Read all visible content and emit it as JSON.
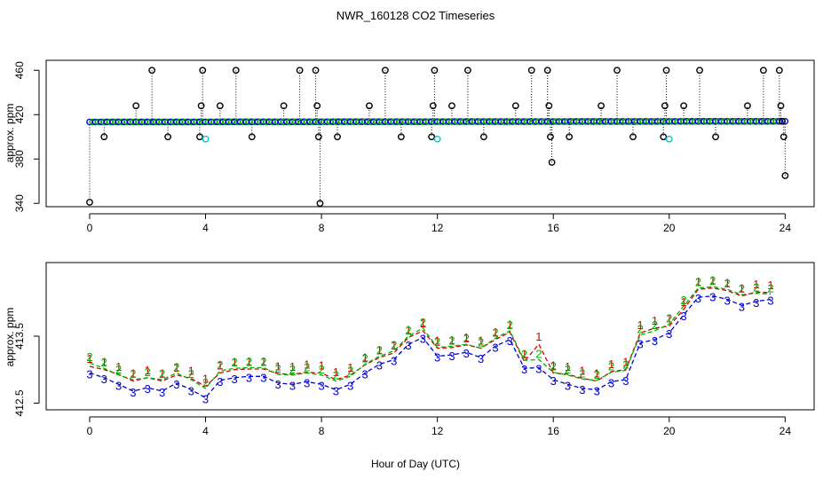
{
  "title": "NWR_160128  CO2 Timeseries",
  "xlabel": "Hour of Day (UTC)",
  "colors": {
    "line1": "#d40000",
    "line2": "#00b000",
    "line3": "#0000d0",
    "cyan": "#00c8d8",
    "black": "#000000"
  },
  "chart_data": [
    {
      "type": "scatter",
      "panel": "top",
      "ylabel": "approx. ppm",
      "xlim": [
        -1.5,
        25
      ],
      "ylim": [
        337,
        469
      ],
      "xticks": [
        "0",
        "4",
        "8",
        "12",
        "16",
        "20",
        "24"
      ],
      "yticks": [
        "340",
        "380",
        "420",
        "460"
      ],
      "baseline": {
        "x_start": 0,
        "x_end": 24,
        "y_start": 413.4,
        "y_end": 414.0,
        "step": 0.1,
        "marker": "circle",
        "colors": [
          "blue",
          "green"
        ]
      },
      "spikes": [
        {
          "x": 0.0,
          "y": 341
        },
        {
          "x": 0.5,
          "y": 400
        },
        {
          "x": 1.6,
          "y": 428
        },
        {
          "x": 2.15,
          "y": 460
        },
        {
          "x": 2.7,
          "y": 400
        },
        {
          "x": 3.8,
          "y": 400
        },
        {
          "x": 3.85,
          "y": 428
        },
        {
          "x": 3.9,
          "y": 460
        },
        {
          "x": 4.5,
          "y": 428
        },
        {
          "x": 5.05,
          "y": 460
        },
        {
          "x": 5.6,
          "y": 400
        },
        {
          "x": 6.7,
          "y": 428
        },
        {
          "x": 7.25,
          "y": 460
        },
        {
          "x": 7.8,
          "y": 460
        },
        {
          "x": 7.85,
          "y": 428
        },
        {
          "x": 7.9,
          "y": 400
        },
        {
          "x": 7.95,
          "y": 340
        },
        {
          "x": 8.55,
          "y": 400
        },
        {
          "x": 9.65,
          "y": 428
        },
        {
          "x": 10.2,
          "y": 460
        },
        {
          "x": 10.75,
          "y": 400
        },
        {
          "x": 11.8,
          "y": 400
        },
        {
          "x": 11.85,
          "y": 428
        },
        {
          "x": 11.9,
          "y": 460
        },
        {
          "x": 12.5,
          "y": 428
        },
        {
          "x": 13.05,
          "y": 460
        },
        {
          "x": 13.6,
          "y": 400
        },
        {
          "x": 14.7,
          "y": 428
        },
        {
          "x": 15.25,
          "y": 460
        },
        {
          "x": 15.8,
          "y": 460
        },
        {
          "x": 15.85,
          "y": 428
        },
        {
          "x": 15.9,
          "y": 400
        },
        {
          "x": 15.95,
          "y": 377
        },
        {
          "x": 16.55,
          "y": 400
        },
        {
          "x": 17.65,
          "y": 428
        },
        {
          "x": 18.2,
          "y": 460
        },
        {
          "x": 18.75,
          "y": 400
        },
        {
          "x": 19.8,
          "y": 400
        },
        {
          "x": 19.85,
          "y": 428
        },
        {
          "x": 19.9,
          "y": 460
        },
        {
          "x": 20.5,
          "y": 428
        },
        {
          "x": 21.05,
          "y": 460
        },
        {
          "x": 21.6,
          "y": 400
        },
        {
          "x": 22.7,
          "y": 428
        },
        {
          "x": 23.25,
          "y": 460
        },
        {
          "x": 23.8,
          "y": 460
        },
        {
          "x": 23.85,
          "y": 428
        },
        {
          "x": 23.9,
          "y": 414
        },
        {
          "x": 23.95,
          "y": 400
        },
        {
          "x": 24.0,
          "y": 365
        }
      ],
      "cyan_points": [
        {
          "x": 4.0,
          "y": 398
        },
        {
          "x": 12.0,
          "y": 398
        },
        {
          "x": 20.0,
          "y": 398
        }
      ]
    },
    {
      "type": "line",
      "panel": "bottom",
      "ylabel": "approx. ppm",
      "xlim": [
        -1.5,
        25
      ],
      "ylim": [
        412.4,
        414.6
      ],
      "xticks": [
        "0",
        "4",
        "8",
        "12",
        "16",
        "20",
        "24"
      ],
      "yticks": [
        "412.5",
        "413.5"
      ],
      "series": [
        {
          "name": "1",
          "color": "red",
          "points": [
            {
              "x": 0.0,
              "y": 413.05
            },
            {
              "x": 0.5,
              "y": 413.0
            },
            {
              "x": 1.0,
              "y": 412.93
            },
            {
              "x": 1.5,
              "y": 412.83
            },
            {
              "x": 2.0,
              "y": 412.88
            },
            {
              "x": 2.5,
              "y": 412.83
            },
            {
              "x": 3.0,
              "y": 412.92
            },
            {
              "x": 3.5,
              "y": 412.87
            },
            {
              "x": 4.0,
              "y": 412.75
            },
            {
              "x": 4.5,
              "y": 412.95
            },
            {
              "x": 5.0,
              "y": 413.0
            },
            {
              "x": 5.5,
              "y": 413.01
            },
            {
              "x": 6.0,
              "y": 413.01
            },
            {
              "x": 6.5,
              "y": 412.94
            },
            {
              "x": 7.0,
              "y": 412.93
            },
            {
              "x": 7.5,
              "y": 412.96
            },
            {
              "x": 8.0,
              "y": 412.95
            },
            {
              "x": 8.5,
              "y": 412.85
            },
            {
              "x": 9.0,
              "y": 412.92
            },
            {
              "x": 9.5,
              "y": 413.07
            },
            {
              "x": 10.0,
              "y": 413.18
            },
            {
              "x": 10.5,
              "y": 413.25
            },
            {
              "x": 11.0,
              "y": 413.48
            },
            {
              "x": 11.5,
              "y": 413.58
            },
            {
              "x": 12.0,
              "y": 413.32
            },
            {
              "x": 12.5,
              "y": 413.33
            },
            {
              "x": 13.0,
              "y": 413.37
            },
            {
              "x": 13.5,
              "y": 413.32
            },
            {
              "x": 14.0,
              "y": 413.45
            },
            {
              "x": 14.5,
              "y": 413.56
            },
            {
              "x": 15.0,
              "y": 413.12
            },
            {
              "x": 15.5,
              "y": 413.38
            },
            {
              "x": 16.0,
              "y": 412.95
            },
            {
              "x": 16.5,
              "y": 412.93
            },
            {
              "x": 17.0,
              "y": 412.87
            },
            {
              "x": 17.5,
              "y": 412.83
            },
            {
              "x": 18.0,
              "y": 412.97
            },
            {
              "x": 18.5,
              "y": 413.0
            },
            {
              "x": 19.0,
              "y": 413.55
            },
            {
              "x": 19.5,
              "y": 413.62
            },
            {
              "x": 20.0,
              "y": 413.65
            },
            {
              "x": 20.5,
              "y": 413.9
            },
            {
              "x": 21.0,
              "y": 414.2
            },
            {
              "x": 21.5,
              "y": 414.22
            },
            {
              "x": 22.0,
              "y": 414.18
            },
            {
              "x": 22.5,
              "y": 414.1
            },
            {
              "x": 23.0,
              "y": 414.16
            },
            {
              "x": 23.5,
              "y": 414.15
            }
          ]
        },
        {
          "name": "2",
          "color": "green",
          "points": [
            {
              "x": 0.0,
              "y": 413.1
            },
            {
              "x": 0.5,
              "y": 413.02
            },
            {
              "x": 1.0,
              "y": 412.92
            },
            {
              "x": 1.5,
              "y": 412.85
            },
            {
              "x": 2.0,
              "y": 412.88
            },
            {
              "x": 2.5,
              "y": 412.85
            },
            {
              "x": 3.0,
              "y": 412.95
            },
            {
              "x": 3.5,
              "y": 412.85
            },
            {
              "x": 4.0,
              "y": 412.72
            },
            {
              "x": 4.5,
              "y": 412.98
            },
            {
              "x": 5.0,
              "y": 413.02
            },
            {
              "x": 5.5,
              "y": 413.03
            },
            {
              "x": 6.0,
              "y": 413.03
            },
            {
              "x": 6.5,
              "y": 412.93
            },
            {
              "x": 7.0,
              "y": 412.92
            },
            {
              "x": 7.5,
              "y": 412.95
            },
            {
              "x": 8.0,
              "y": 412.92
            },
            {
              "x": 8.5,
              "y": 412.83
            },
            {
              "x": 9.0,
              "y": 412.9
            },
            {
              "x": 9.5,
              "y": 413.08
            },
            {
              "x": 10.0,
              "y": 413.2
            },
            {
              "x": 10.5,
              "y": 413.28
            },
            {
              "x": 11.0,
              "y": 413.5
            },
            {
              "x": 11.5,
              "y": 413.62
            },
            {
              "x": 12.0,
              "y": 413.33
            },
            {
              "x": 12.5,
              "y": 413.35
            },
            {
              "x": 13.0,
              "y": 413.38
            },
            {
              "x": 13.5,
              "y": 413.32
            },
            {
              "x": 14.0,
              "y": 413.47
            },
            {
              "x": 14.5,
              "y": 413.58
            },
            {
              "x": 15.0,
              "y": 413.14
            },
            {
              "x": 15.5,
              "y": 413.15
            },
            {
              "x": 16.0,
              "y": 412.96
            },
            {
              "x": 16.5,
              "y": 412.92
            },
            {
              "x": 17.0,
              "y": 412.86
            },
            {
              "x": 17.5,
              "y": 412.84
            },
            {
              "x": 18.0,
              "y": 412.96
            },
            {
              "x": 18.5,
              "y": 412.99
            },
            {
              "x": 19.0,
              "y": 413.52
            },
            {
              "x": 19.5,
              "y": 413.58
            },
            {
              "x": 20.0,
              "y": 413.68
            },
            {
              "x": 20.5,
              "y": 413.95
            },
            {
              "x": 21.0,
              "y": 414.22
            },
            {
              "x": 21.5,
              "y": 414.24
            },
            {
              "x": 22.0,
              "y": 414.2
            },
            {
              "x": 22.5,
              "y": 414.12
            },
            {
              "x": 23.0,
              "y": 414.14
            },
            {
              "x": 23.5,
              "y": 414.13
            }
          ]
        },
        {
          "name": "3",
          "color": "blue",
          "points": [
            {
              "x": 0.0,
              "y": 412.95
            },
            {
              "x": 0.5,
              "y": 412.88
            },
            {
              "x": 1.0,
              "y": 412.78
            },
            {
              "x": 1.5,
              "y": 412.68
            },
            {
              "x": 2.0,
              "y": 412.73
            },
            {
              "x": 2.5,
              "y": 412.68
            },
            {
              "x": 3.0,
              "y": 412.8
            },
            {
              "x": 3.5,
              "y": 412.7
            },
            {
              "x": 4.0,
              "y": 412.58
            },
            {
              "x": 4.5,
              "y": 412.84
            },
            {
              "x": 5.0,
              "y": 412.88
            },
            {
              "x": 5.5,
              "y": 412.9
            },
            {
              "x": 6.0,
              "y": 412.9
            },
            {
              "x": 6.5,
              "y": 412.8
            },
            {
              "x": 7.0,
              "y": 412.78
            },
            {
              "x": 7.5,
              "y": 412.82
            },
            {
              "x": 8.0,
              "y": 412.78
            },
            {
              "x": 8.5,
              "y": 412.7
            },
            {
              "x": 9.0,
              "y": 412.78
            },
            {
              "x": 9.5,
              "y": 412.95
            },
            {
              "x": 10.0,
              "y": 413.08
            },
            {
              "x": 10.5,
              "y": 413.15
            },
            {
              "x": 11.0,
              "y": 413.38
            },
            {
              "x": 11.5,
              "y": 413.48
            },
            {
              "x": 12.0,
              "y": 413.2
            },
            {
              "x": 12.5,
              "y": 413.22
            },
            {
              "x": 13.0,
              "y": 413.26
            },
            {
              "x": 13.5,
              "y": 413.18
            },
            {
              "x": 14.0,
              "y": 413.35
            },
            {
              "x": 14.5,
              "y": 413.45
            },
            {
              "x": 15.0,
              "y": 413.02
            },
            {
              "x": 15.5,
              "y": 413.03
            },
            {
              "x": 16.0,
              "y": 412.85
            },
            {
              "x": 16.5,
              "y": 412.78
            },
            {
              "x": 17.0,
              "y": 412.72
            },
            {
              "x": 17.5,
              "y": 412.7
            },
            {
              "x": 18.0,
              "y": 412.82
            },
            {
              "x": 18.5,
              "y": 412.85
            },
            {
              "x": 19.0,
              "y": 413.4
            },
            {
              "x": 19.5,
              "y": 413.45
            },
            {
              "x": 20.0,
              "y": 413.55
            },
            {
              "x": 20.5,
              "y": 413.82
            },
            {
              "x": 21.0,
              "y": 414.08
            },
            {
              "x": 21.5,
              "y": 414.1
            },
            {
              "x": 22.0,
              "y": 414.05
            },
            {
              "x": 22.5,
              "y": 413.96
            },
            {
              "x": 23.0,
              "y": 414.02
            },
            {
              "x": 23.5,
              "y": 414.05
            }
          ]
        }
      ]
    }
  ]
}
